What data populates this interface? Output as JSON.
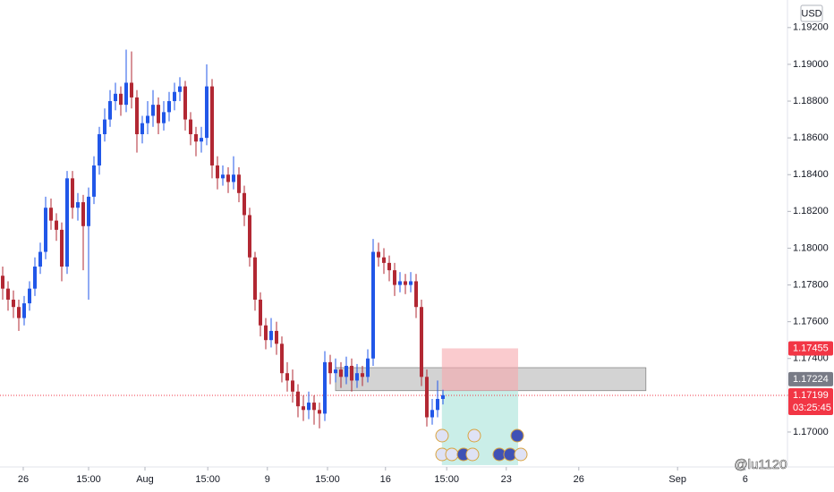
{
  "chart_data": {
    "type": "candlestick",
    "currency": "USD",
    "watermark": "@lu1120",
    "up_color": "#2157e8",
    "down_color": "#b22833",
    "xlim": [
      -0.5,
      146.17
    ],
    "ylim": [
      1.1681,
      1.1935
    ],
    "xticks": [
      {
        "value": 3.83,
        "label": "26"
      },
      {
        "value": 16,
        "label": "15:00"
      },
      {
        "value": 26.5,
        "label": "Aug"
      },
      {
        "value": 38.2,
        "label": "15:00"
      },
      {
        "value": 49.3,
        "label": "9"
      },
      {
        "value": 60.5,
        "label": "15:00"
      },
      {
        "value": 71.3,
        "label": "16"
      },
      {
        "value": 82.7,
        "label": "15:00"
      },
      {
        "value": 93.8,
        "label": "23"
      },
      {
        "value": 107.3,
        "label": "26"
      },
      {
        "value": 125.7,
        "label": "Sep"
      },
      {
        "value": 138.3,
        "label": "6"
      }
    ],
    "yticks": [
      {
        "value": 1.17,
        "label": "1.17000"
      },
      {
        "value": 1.172,
        "label": "1.17200"
      },
      {
        "value": 1.174,
        "label": "1.17400"
      },
      {
        "value": 1.176,
        "label": "1.17600"
      },
      {
        "value": 1.178,
        "label": "1.17800"
      },
      {
        "value": 1.18,
        "label": "1.18000"
      },
      {
        "value": 1.182,
        "label": "1.18200"
      },
      {
        "value": 1.184,
        "label": "1.18400"
      },
      {
        "value": 1.186,
        "label": "1.18600"
      },
      {
        "value": 1.188,
        "label": "1.18800"
      },
      {
        "value": 1.19,
        "label": "1.19000"
      },
      {
        "value": 1.192,
        "label": "1.19200"
      }
    ],
    "candles": [
      [
        1.1785,
        1.179,
        1.1772,
        1.1778
      ],
      [
        1.1778,
        1.1782,
        1.1766,
        1.1772
      ],
      [
        1.1772,
        1.1777,
        1.1762,
        1.1768
      ],
      [
        1.1768,
        1.1772,
        1.1755,
        1.1762
      ],
      [
        1.1762,
        1.1774,
        1.1758,
        1.177
      ],
      [
        1.177,
        1.1782,
        1.1766,
        1.1778
      ],
      [
        1.1778,
        1.1795,
        1.1774,
        1.179
      ],
      [
        1.179,
        1.1803,
        1.1786,
        1.1798
      ],
      [
        1.1798,
        1.1828,
        1.1794,
        1.1822
      ],
      [
        1.1822,
        1.1827,
        1.181,
        1.1815
      ],
      [
        1.1815,
        1.1819,
        1.1804,
        1.181
      ],
      [
        1.181,
        1.1814,
        1.1782,
        1.179
      ],
      [
        1.179,
        1.1842,
        1.1786,
        1.1838
      ],
      [
        1.1838,
        1.1842,
        1.1816,
        1.1822
      ],
      [
        1.1822,
        1.183,
        1.1815,
        1.1825
      ],
      [
        1.1825,
        1.1829,
        1.1788,
        1.1812
      ],
      [
        1.1812,
        1.1833,
        1.1772,
        1.1828
      ],
      [
        1.1828,
        1.185,
        1.1824,
        1.1845
      ],
      [
        1.1845,
        1.1866,
        1.184,
        1.1862
      ],
      [
        1.1862,
        1.1876,
        1.1858,
        1.187
      ],
      [
        1.187,
        1.1886,
        1.1866,
        1.188
      ],
      [
        1.188,
        1.189,
        1.1875,
        1.1884
      ],
      [
        1.1884,
        1.1888,
        1.1872,
        1.1878
      ],
      [
        1.1878,
        1.1908,
        1.1874,
        1.189
      ],
      [
        1.189,
        1.1907,
        1.1876,
        1.1882
      ],
      [
        1.1882,
        1.1886,
        1.1852,
        1.1862
      ],
      [
        1.1862,
        1.1872,
        1.1857,
        1.1868
      ],
      [
        1.1868,
        1.188,
        1.1862,
        1.1872
      ],
      [
        1.1872,
        1.1886,
        1.1866,
        1.1878
      ],
      [
        1.1878,
        1.1882,
        1.1862,
        1.1868
      ],
      [
        1.1868,
        1.188,
        1.1864,
        1.1874
      ],
      [
        1.1874,
        1.1885,
        1.1869,
        1.188
      ],
      [
        1.188,
        1.189,
        1.1875,
        1.1885
      ],
      [
        1.1885,
        1.1893,
        1.188,
        1.1888
      ],
      [
        1.1888,
        1.1891,
        1.1864,
        1.187
      ],
      [
        1.187,
        1.1874,
        1.1856,
        1.1862
      ],
      [
        1.1862,
        1.1866,
        1.185,
        1.1858
      ],
      [
        1.1858,
        1.1866,
        1.1852,
        1.186
      ],
      [
        1.186,
        1.19,
        1.1856,
        1.1888
      ],
      [
        1.1888,
        1.1892,
        1.1838,
        1.1845
      ],
      [
        1.1845,
        1.185,
        1.1832,
        1.1838
      ],
      [
        1.1838,
        1.1845,
        1.1834,
        1.184
      ],
      [
        1.184,
        1.1844,
        1.183,
        1.1836
      ],
      [
        1.1836,
        1.185,
        1.1832,
        1.184
      ],
      [
        1.184,
        1.1844,
        1.1825,
        1.183
      ],
      [
        1.183,
        1.1834,
        1.1812,
        1.1818
      ],
      [
        1.1818,
        1.1822,
        1.179,
        1.1795
      ],
      [
        1.1795,
        1.1798,
        1.1766,
        1.1772
      ],
      [
        1.1772,
        1.1776,
        1.1752,
        1.1758
      ],
      [
        1.1758,
        1.1762,
        1.1745,
        1.175
      ],
      [
        1.175,
        1.1762,
        1.1746,
        1.1755
      ],
      [
        1.1755,
        1.176,
        1.1742,
        1.1748
      ],
      [
        1.1748,
        1.1752,
        1.1727,
        1.1732
      ],
      [
        1.1732,
        1.1738,
        1.1722,
        1.1728
      ],
      [
        1.1728,
        1.1734,
        1.1716,
        1.1722
      ],
      [
        1.1722,
        1.1726,
        1.1708,
        1.1714
      ],
      [
        1.1714,
        1.172,
        1.1706,
        1.1712
      ],
      [
        1.1712,
        1.1722,
        1.1707,
        1.1716
      ],
      [
        1.1716,
        1.172,
        1.1704,
        1.1712
      ],
      [
        1.1712,
        1.1716,
        1.1702,
        1.171
      ],
      [
        1.171,
        1.1744,
        1.1706,
        1.1738
      ],
      [
        1.1738,
        1.1742,
        1.1726,
        1.1732
      ],
      [
        1.1732,
        1.174,
        1.1727,
        1.1734
      ],
      [
        1.1734,
        1.1738,
        1.1724,
        1.173
      ],
      [
        1.173,
        1.1741,
        1.1726,
        1.1736
      ],
      [
        1.1736,
        1.174,
        1.1722,
        1.1728
      ],
      [
        1.1728,
        1.1737,
        1.1724,
        1.1732
      ],
      [
        1.1732,
        1.1736,
        1.1725,
        1.173
      ],
      [
        1.173,
        1.1745,
        1.1727,
        1.174
      ],
      [
        1.174,
        1.1805,
        1.1736,
        1.1798
      ],
      [
        1.1798,
        1.1803,
        1.179,
        1.1795
      ],
      [
        1.1795,
        1.18,
        1.1786,
        1.1792
      ],
      [
        1.1792,
        1.1796,
        1.1782,
        1.1788
      ],
      [
        1.1788,
        1.1792,
        1.1774,
        1.178
      ],
      [
        1.178,
        1.1787,
        1.1776,
        1.1782
      ],
      [
        1.1782,
        1.1786,
        1.1775,
        1.178
      ],
      [
        1.178,
        1.1787,
        1.1776,
        1.1782
      ],
      [
        1.1782,
        1.1786,
        1.1762,
        1.1768
      ],
      [
        1.1768,
        1.1772,
        1.1725,
        1.173
      ],
      [
        1.173,
        1.1734,
        1.1703,
        1.1708
      ],
      [
        1.1708,
        1.1718,
        1.1704,
        1.1712
      ],
      [
        1.1712,
        1.1728,
        1.1708,
        1.1718
      ],
      [
        1.1718,
        1.1723,
        1.1715,
        1.172
      ]
    ],
    "zone": {
      "x": [
        62,
        119.8
      ],
      "y": [
        1.1735,
        1.17225
      ],
      "color": "#9e9e9e"
    },
    "position": {
      "x": [
        81.8,
        96
      ],
      "entry": 1.17224,
      "stop": 1.17455,
      "target": 1.1682,
      "stop_color": "#f7a9ae",
      "target_color": "#a6e3d8"
    },
    "stop_label_color": "#f23645",
    "entry_label_color": "#787b86",
    "current_price": 1.17199,
    "countdown": "03:25:45",
    "current_color": "#f23645"
  }
}
